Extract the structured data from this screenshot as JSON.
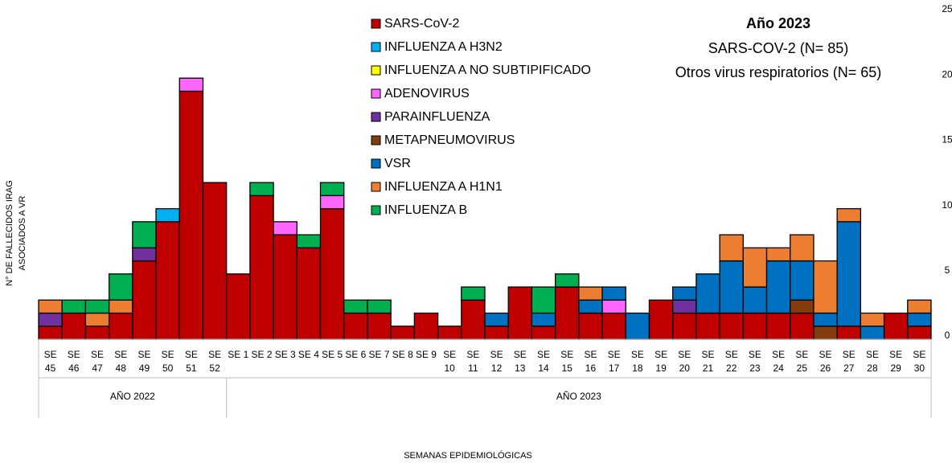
{
  "chart_data": {
    "type": "stacked_bar",
    "y_label": [
      "N° DE FALLECIDOS IRAG",
      "ASOCIADOS A VR"
    ],
    "x_label": "SEMANAS EPIDEMIOLÓGICAS",
    "annotation": {
      "title": "Año 2023",
      "lines": [
        "SARS-COV-2 (N= 85)",
        "Otros virus respiratorios (N= 65)"
      ]
    },
    "groups": [
      {
        "label": "AÑO 2022",
        "categories": [
          "SE 45",
          "SE 46",
          "SE 47",
          "SE 48",
          "SE 49",
          "SE 50",
          "SE 51",
          "SE 52"
        ]
      },
      {
        "label": "AÑO 2023",
        "categories": [
          "SE 1",
          "SE 2",
          "SE 3",
          "SE 4",
          "SE 5",
          "SE 6",
          "SE 7",
          "SE 8",
          "SE 9",
          "SE 10",
          "SE 11",
          "SE 12",
          "SE 13",
          "SE 14",
          "SE 15",
          "SE 16",
          "SE 17",
          "SE 18",
          "SE 19",
          "SE 20",
          "SE 21",
          "SE 22",
          "SE 23",
          "SE 24",
          "SE 25",
          "SE 26",
          "SE 27",
          "SE 28",
          "SE 29",
          "SE 30"
        ]
      }
    ],
    "ylim": [
      0,
      25
    ],
    "yticks": [
      0,
      5,
      10,
      15,
      20,
      25
    ],
    "y_axis_side": "right",
    "grid": false,
    "series": [
      {
        "name": "SARS-CoV-2",
        "color": "#c00000",
        "values": [
          1,
          2,
          1,
          2,
          6,
          9,
          19,
          12,
          5,
          11,
          8,
          7,
          10,
          2,
          2,
          1,
          2,
          1,
          3,
          1,
          4,
          1,
          4,
          2,
          2,
          0,
          3,
          2,
          2,
          2,
          2,
          2,
          2,
          0,
          1,
          0,
          2,
          1
        ]
      },
      {
        "name": "INFLUENZA A H3N2",
        "color": "#00b0f0",
        "values": [
          0,
          0,
          0,
          0,
          0,
          1,
          0,
          0,
          0,
          0,
          0,
          0,
          0,
          0,
          0,
          0,
          0,
          0,
          0,
          0,
          0,
          0,
          0,
          0,
          0,
          0,
          0,
          0,
          0,
          0,
          0,
          0,
          0,
          0,
          0,
          0,
          0,
          0
        ]
      },
      {
        "name": "INFLUENZA A NO SUBTIPIFICADO",
        "color": "#ffff00",
        "values": [
          0,
          0,
          0,
          0,
          0,
          0,
          0,
          0,
          0,
          0,
          0,
          0,
          0,
          0,
          0,
          0,
          0,
          0,
          0,
          0,
          0,
          0,
          0,
          0,
          0,
          0,
          0,
          0,
          0,
          0,
          0,
          0,
          0,
          0,
          0,
          0,
          0,
          0
        ]
      },
      {
        "name": "ADENOVIRUS",
        "color": "#ff66ff",
        "values": [
          0,
          0,
          0,
          0,
          0,
          0,
          1,
          0,
          0,
          0,
          1,
          0,
          1,
          0,
          0,
          0,
          0,
          0,
          0,
          0,
          0,
          0,
          0,
          0,
          1,
          0,
          0,
          0,
          0,
          0,
          0,
          0,
          0,
          0,
          0,
          0,
          0,
          0
        ]
      },
      {
        "name": "PARAINFLUENZA",
        "color": "#7030a0",
        "values": [
          1,
          0,
          0,
          0,
          1,
          0,
          0,
          0,
          0,
          0,
          0,
          0,
          0,
          0,
          0,
          0,
          0,
          0,
          0,
          0,
          0,
          0,
          0,
          0,
          0,
          0,
          0,
          1,
          0,
          0,
          0,
          0,
          0,
          0,
          0,
          0,
          0,
          0
        ]
      },
      {
        "name": "METAPNEUMOVIRUS",
        "color": "#843c0c",
        "values": [
          0,
          0,
          0,
          0,
          0,
          0,
          0,
          0,
          0,
          0,
          0,
          0,
          0,
          0,
          0,
          0,
          0,
          0,
          0,
          0,
          0,
          0,
          0,
          0,
          0,
          0,
          0,
          0,
          0,
          0,
          0,
          0,
          1,
          1,
          0,
          0,
          0,
          0
        ]
      },
      {
        "name": "VSR",
        "color": "#0070c0",
        "values": [
          0,
          0,
          0,
          0,
          0,
          0,
          0,
          0,
          0,
          0,
          0,
          0,
          0,
          0,
          0,
          0,
          0,
          0,
          0,
          1,
          0,
          1,
          0,
          1,
          1,
          2,
          0,
          1,
          3,
          4,
          2,
          4,
          3,
          1,
          8,
          1,
          0,
          1
        ]
      },
      {
        "name": "INFLUENZA A H1N1",
        "color": "#ed7d31",
        "values": [
          1,
          0,
          1,
          1,
          0,
          0,
          0,
          0,
          0,
          0,
          0,
          0,
          0,
          0,
          0,
          0,
          0,
          0,
          0,
          0,
          0,
          0,
          0,
          1,
          0,
          0,
          0,
          0,
          0,
          2,
          3,
          1,
          2,
          4,
          1,
          1,
          0,
          1
        ]
      },
      {
        "name": "INFLUENZA B",
        "color": "#00b050",
        "values": [
          0,
          1,
          1,
          2,
          2,
          0,
          0,
          0,
          0,
          1,
          0,
          1,
          1,
          1,
          1,
          0,
          0,
          0,
          1,
          0,
          0,
          2,
          1,
          0,
          0,
          0,
          0,
          0,
          0,
          0,
          0,
          0,
          0,
          0,
          0,
          0,
          0,
          0
        ]
      }
    ]
  }
}
